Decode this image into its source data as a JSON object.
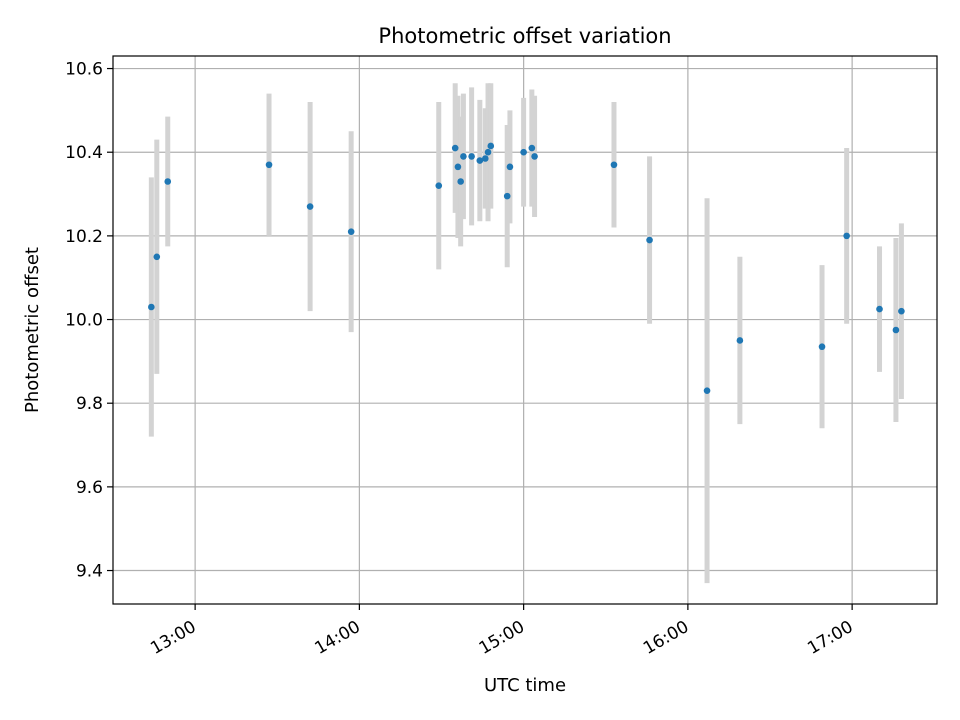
{
  "chart_data": {
    "type": "scatter",
    "title": "Photometric offset variation",
    "xlabel": "UTC time",
    "ylabel": "Photometric offset",
    "grid": true,
    "legend": "none",
    "xlim": [
      "12:30",
      "17:31"
    ],
    "ylim": [
      9.32,
      10.63
    ],
    "x_ticks": [
      "13:00",
      "14:00",
      "15:00",
      "16:00",
      "17:00"
    ],
    "y_ticks": [
      "9.4",
      "9.6",
      "9.8",
      "10.0",
      "10.2",
      "10.4",
      "10.6"
    ],
    "colors": {
      "point": "#1f77b4",
      "error_bar": "#d3d3d3",
      "grid": "#b0b0b0"
    },
    "series": [
      {
        "points": [
          {
            "x": "12:44",
            "y": 10.03,
            "err": 0.31
          },
          {
            "x": "12:46",
            "y": 10.15,
            "err": 0.28
          },
          {
            "x": "12:50",
            "y": 10.33,
            "err": 0.155
          },
          {
            "x": "13:27",
            "y": 10.37,
            "err": 0.17
          },
          {
            "x": "13:42",
            "y": 10.27,
            "err": 0.25
          },
          {
            "x": "13:57",
            "y": 10.21,
            "err": 0.24
          },
          {
            "x": "14:29",
            "y": 10.32,
            "err": 0.2
          },
          {
            "x": "14:35",
            "y": 10.41,
            "err": 0.155
          },
          {
            "x": "14:36",
            "y": 10.365,
            "err": 0.17
          },
          {
            "x": "14:37",
            "y": 10.33,
            "err": 0.155
          },
          {
            "x": "14:38",
            "y": 10.39,
            "err": 0.15
          },
          {
            "x": "14:41",
            "y": 10.39,
            "err": 0.165
          },
          {
            "x": "14:44",
            "y": 10.38,
            "err": 0.145
          },
          {
            "x": "14:46",
            "y": 10.385,
            "err": 0.12
          },
          {
            "x": "14:47",
            "y": 10.4,
            "err": 0.165
          },
          {
            "x": "14:48",
            "y": 10.415,
            "err": 0.15
          },
          {
            "x": "14:54",
            "y": 10.295,
            "err": 0.17
          },
          {
            "x": "14:55",
            "y": 10.365,
            "err": 0.135
          },
          {
            "x": "15:00",
            "y": 10.4,
            "err": 0.13
          },
          {
            "x": "15:03",
            "y": 10.41,
            "err": 0.14
          },
          {
            "x": "15:04",
            "y": 10.39,
            "err": 0.145
          },
          {
            "x": "15:33",
            "y": 10.37,
            "err": 0.15
          },
          {
            "x": "15:46",
            "y": 10.19,
            "err": 0.2
          },
          {
            "x": "16:07",
            "y": 9.83,
            "err": 0.46
          },
          {
            "x": "16:19",
            "y": 9.95,
            "err": 0.2
          },
          {
            "x": "16:49",
            "y": 9.935,
            "err": 0.195
          },
          {
            "x": "16:58",
            "y": 10.2,
            "err": 0.21
          },
          {
            "x": "17:10",
            "y": 10.025,
            "err": 0.15
          },
          {
            "x": "17:16",
            "y": 9.975,
            "err": 0.22
          },
          {
            "x": "17:18",
            "y": 10.02,
            "err": 0.21
          }
        ]
      }
    ]
  }
}
